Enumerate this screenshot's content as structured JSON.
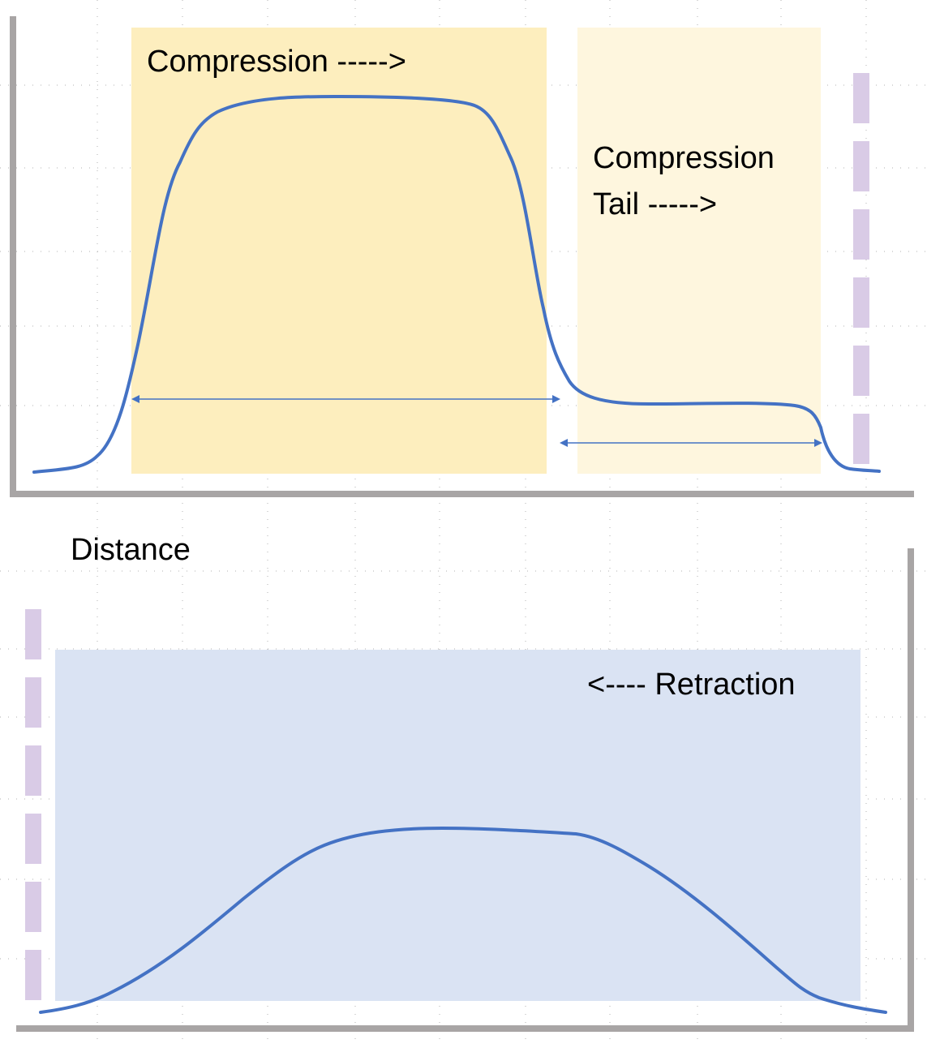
{
  "top_panel": {
    "compression_label": "Compression ----->",
    "tail_label_line1": "Compression",
    "tail_label_line2": "Tail ----->"
  },
  "middle": {
    "distance_label": "Distance"
  },
  "bottom_panel": {
    "retraction_label": "<---- Retraction"
  },
  "colors": {
    "compression_region": "#fdeebe",
    "tail_region": "#fef6de",
    "retraction_region": "#dae3f3",
    "curve": "#4472c4",
    "axis": "#a8a5a5",
    "dashed_marker": "#d9cbe6",
    "grid_dots": "#b0b0b0"
  }
}
